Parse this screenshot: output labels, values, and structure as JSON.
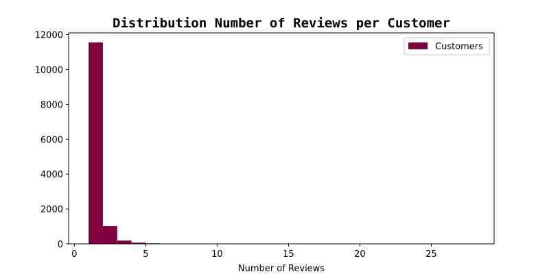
{
  "chart_data": {
    "type": "bar",
    "title": "Distribution Number of Reviews per Customer",
    "xlabel": "Number of Reviews",
    "ylabel": "",
    "xlim": [
      -0.4,
      29.4
    ],
    "ylim": [
      0,
      12100
    ],
    "xticks": [
      0,
      5,
      10,
      15,
      20,
      25
    ],
    "yticks": [
      0,
      2000,
      4000,
      6000,
      8000,
      10000,
      12000
    ],
    "bin_edges": [
      1,
      2,
      3,
      4,
      5,
      6,
      7,
      8,
      9,
      10,
      11,
      12,
      13,
      14,
      15,
      16,
      17,
      18,
      19,
      20,
      21,
      22,
      23,
      24,
      25,
      26,
      27,
      28
    ],
    "series": [
      {
        "name": "Customers",
        "color": "#800040",
        "values": [
          11550,
          1020,
          190,
          70,
          30,
          15,
          10,
          6,
          4,
          3,
          2,
          2,
          1,
          1,
          1,
          1,
          1,
          0,
          1,
          0,
          0,
          1,
          0,
          0,
          0,
          0,
          1
        ]
      }
    ],
    "grid": false,
    "legend_position": "top-right"
  }
}
